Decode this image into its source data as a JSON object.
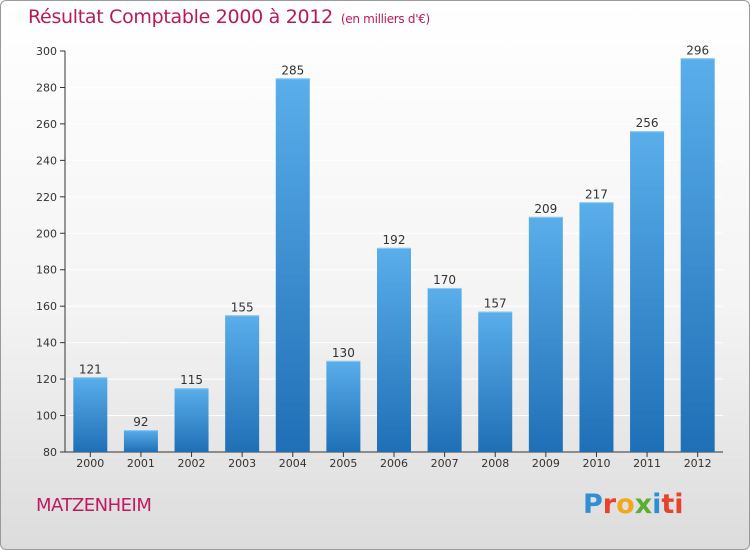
{
  "title": "Résultat Comptable 2000 à 2012",
  "subtitle": "(en milliers d'€)",
  "commune": "MATZENHEIM",
  "logo": [
    "P",
    "r",
    "o",
    "x",
    "i",
    "ti"
  ],
  "colors": {
    "bar_top": "#5aaeea",
    "bar_bottom": "#1f6fb6",
    "title": "#b8195e",
    "grid": "#ffffff"
  },
  "chart_data": {
    "type": "bar",
    "categories": [
      "2000",
      "2001",
      "2002",
      "2003",
      "2004",
      "2005",
      "2006",
      "2007",
      "2008",
      "2009",
      "2010",
      "2011",
      "2012"
    ],
    "values": [
      121,
      92,
      115,
      155,
      285,
      130,
      192,
      170,
      157,
      209,
      217,
      256,
      296
    ],
    "title": "Résultat Comptable 2000 à 2012",
    "subtitle": "(en milliers d'€)",
    "xlabel": "",
    "ylabel": "",
    "ylim": [
      80,
      300
    ],
    "yticks": [
      80,
      100,
      120,
      140,
      160,
      180,
      200,
      220,
      240,
      260,
      280,
      300
    ],
    "grid": true,
    "legend": "none"
  }
}
